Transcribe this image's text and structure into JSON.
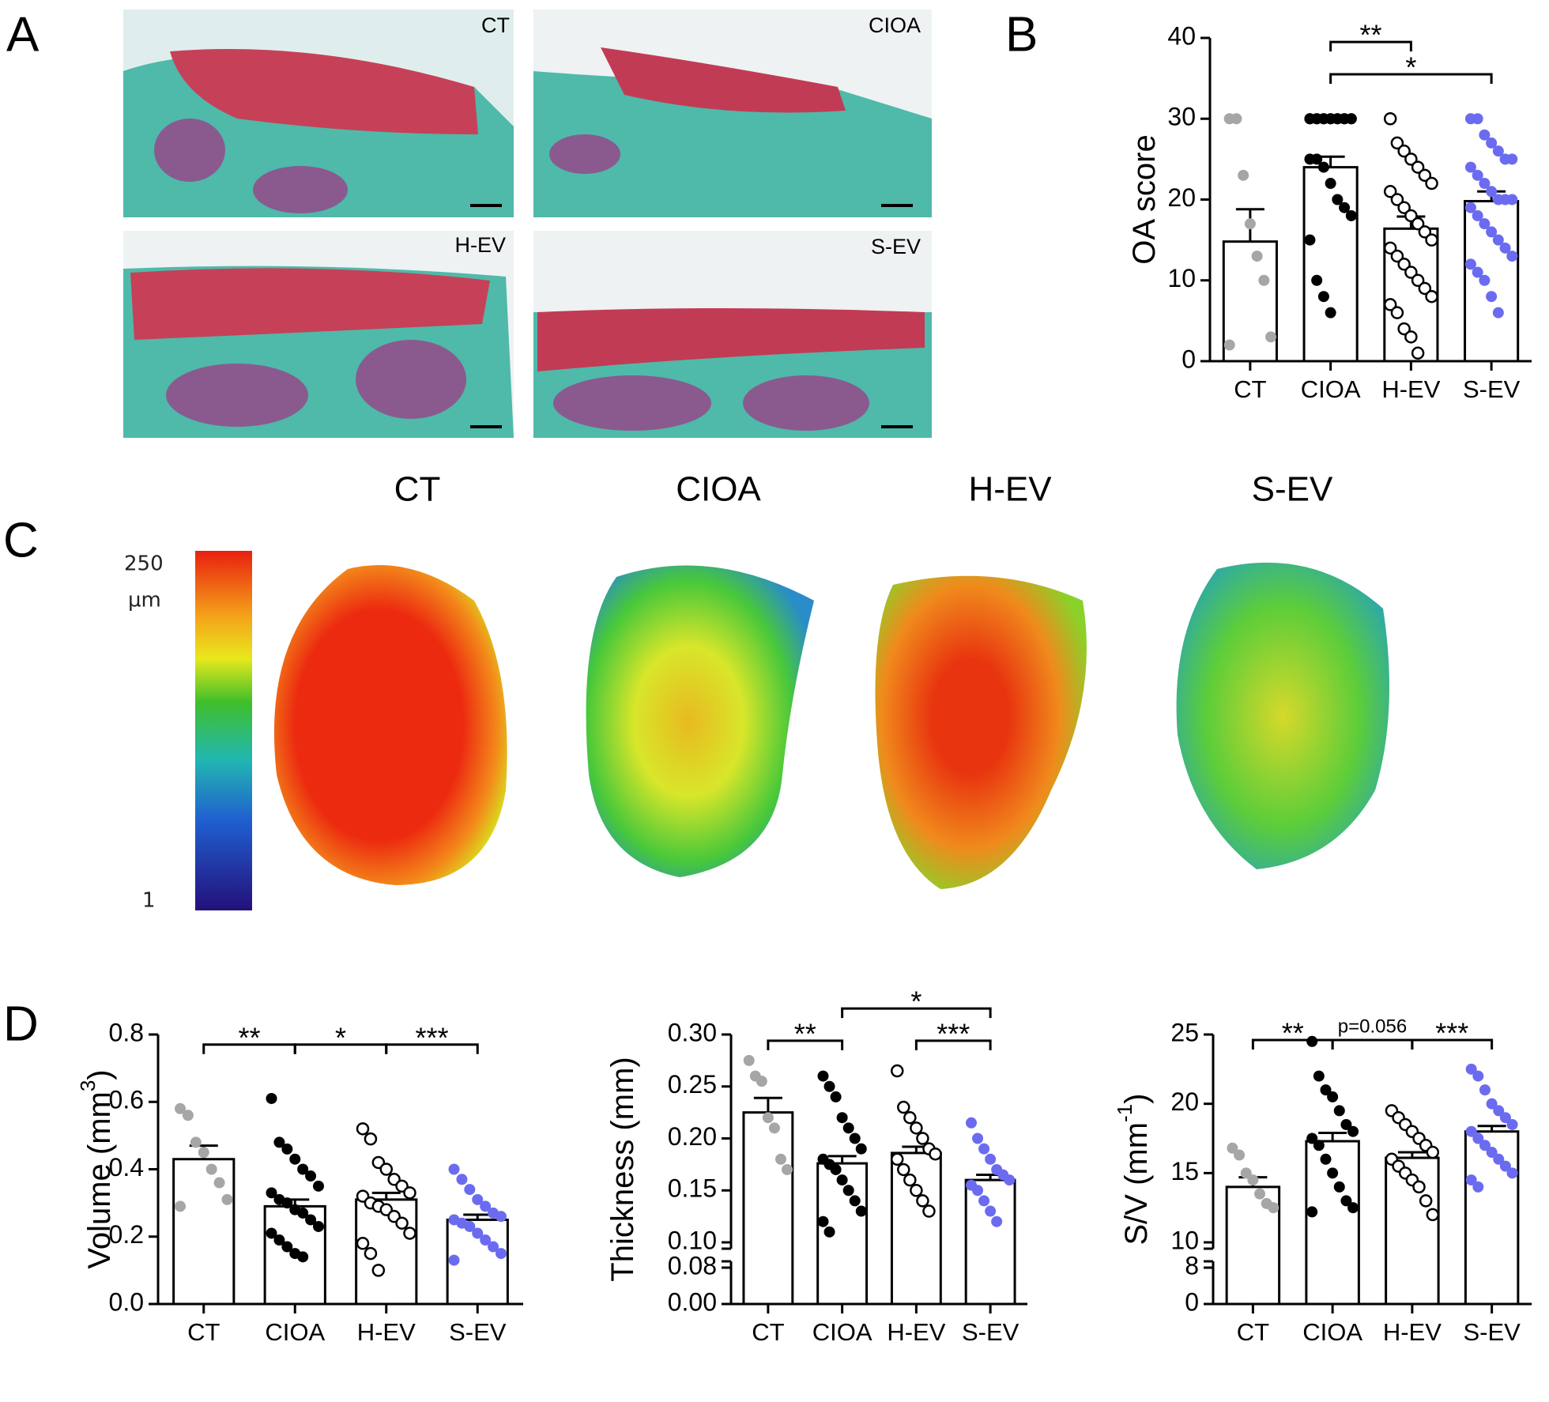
{
  "panel_labels": [
    "A",
    "B",
    "C",
    "D"
  ],
  "histology_labels": [
    "CT",
    "CIOA",
    "H-EV",
    "S-EV"
  ],
  "heatmap": {
    "groups": [
      "CT",
      "CIOA",
      "H-EV",
      "S-EV"
    ],
    "scale_max": "250",
    "scale_unit": "µm",
    "scale_min": "1"
  },
  "chart_data": [
    {
      "type": "bar",
      "ylabel": [
        "OA score"
      ],
      "categories": [
        "CT",
        "CIOA",
        "H-EV",
        "S-EV"
      ],
      "values": [
        14.8,
        24,
        16.4,
        19.8
      ],
      "errors": [
        4,
        1.3,
        1.5,
        1.2
      ],
      "point_colors": [
        "#a6a6a6",
        "#000000",
        "#000000",
        "#6b6bf0"
      ],
      "point_style": [
        "filled",
        "filled",
        "open",
        "filled"
      ],
      "points": [
        [
          30,
          30,
          23,
          17,
          13,
          10,
          3,
          2
        ],
        [
          30,
          30,
          30,
          30,
          30,
          30,
          30,
          30,
          30,
          30,
          30,
          30,
          30,
          30,
          25,
          25,
          24,
          22,
          20,
          19,
          18,
          15,
          10,
          8,
          6
        ],
        [
          30,
          27,
          26,
          25,
          24,
          23,
          22,
          21,
          20,
          19,
          18,
          17,
          16,
          15,
          14,
          13,
          12,
          11,
          10,
          9,
          8,
          7,
          6,
          4,
          3,
          1
        ],
        [
          30,
          30,
          28,
          27,
          26,
          25,
          25,
          24,
          23,
          22,
          21,
          20,
          20,
          20,
          19,
          18,
          17,
          16,
          15,
          14,
          13,
          12,
          11,
          10,
          8,
          6
        ]
      ],
      "ylim": [
        0,
        40
      ],
      "yticks": [
        0,
        10,
        20,
        30,
        40
      ],
      "brackets": [
        {
          "between": [
            "CIOA",
            "H-EV"
          ],
          "y": 39.5,
          "text": "**"
        },
        {
          "between": [
            "CIOA",
            "S-EV"
          ],
          "y": 35.5,
          "text": "*"
        }
      ]
    },
    {
      "type": "bar",
      "ylabel": [
        "Volume (mm",
        "3",
        ")"
      ],
      "categories": [
        "CT",
        "CIOA",
        "H-EV",
        "S-EV"
      ],
      "values": [
        0.43,
        0.29,
        0.31,
        0.25
      ],
      "errors": [
        0.04,
        0.02,
        0.02,
        0.015
      ],
      "point_colors": [
        "#a6a6a6",
        "#000000",
        "#000000",
        "#6b6bf0"
      ],
      "point_style": [
        "filled",
        "filled",
        "open",
        "filled"
      ],
      "points": [
        [
          0.58,
          0.56,
          0.48,
          0.45,
          0.4,
          0.36,
          0.31,
          0.29
        ],
        [
          0.61,
          0.48,
          0.46,
          0.43,
          0.4,
          0.38,
          0.35,
          0.33,
          0.31,
          0.3,
          0.28,
          0.27,
          0.25,
          0.23,
          0.21,
          0.19,
          0.17,
          0.15,
          0.14
        ],
        [
          0.52,
          0.49,
          0.42,
          0.4,
          0.37,
          0.35,
          0.33,
          0.32,
          0.3,
          0.29,
          0.28,
          0.26,
          0.24,
          0.21,
          0.18,
          0.15,
          0.1
        ],
        [
          0.4,
          0.37,
          0.34,
          0.31,
          0.29,
          0.27,
          0.26,
          0.25,
          0.24,
          0.23,
          0.21,
          0.19,
          0.17,
          0.15,
          0.13
        ]
      ],
      "ylim": [
        0,
        0.8
      ],
      "yticks": [
        {
          "value": 0,
          "label": "0.0"
        },
        0.2,
        0.4,
        0.6,
        0.8
      ],
      "brackets": [
        {
          "between": [
            "CT",
            "CIOA"
          ],
          "y": 0.77,
          "text": "**"
        },
        {
          "between": [
            "CIOA",
            "H-EV"
          ],
          "y": 0.77,
          "text": "*"
        },
        {
          "between": [
            "H-EV",
            "S-EV"
          ],
          "y": 0.77,
          "text": "***"
        }
      ]
    },
    {
      "type": "bar",
      "ylabel": [
        "Thickness (mm)"
      ],
      "categories": [
        "CT",
        "CIOA",
        "H-EV",
        "S-EV"
      ],
      "values": [
        0.225,
        0.176,
        0.186,
        0.16
      ],
      "errors": [
        0.014,
        0.007,
        0.006,
        0.005
      ],
      "point_colors": [
        "#a6a6a6",
        "#000000",
        "#000000",
        "#6b6bf0"
      ],
      "point_style": [
        "filled",
        "filled",
        "open",
        "filled"
      ],
      "points": [
        [
          0.275,
          0.26,
          0.255,
          0.22,
          0.21,
          0.18,
          0.17
        ],
        [
          0.26,
          0.25,
          0.24,
          0.22,
          0.21,
          0.2,
          0.19,
          0.18,
          0.175,
          0.17,
          0.16,
          0.15,
          0.14,
          0.13,
          0.12,
          0.11
        ],
        [
          0.265,
          0.23,
          0.22,
          0.21,
          0.2,
          0.19,
          0.185,
          0.18,
          0.17,
          0.16,
          0.15,
          0.14,
          0.13
        ],
        [
          0.215,
          0.2,
          0.19,
          0.18,
          0.17,
          0.165,
          0.16,
          0.155,
          0.15,
          0.14,
          0.13,
          0.12
        ]
      ],
      "ylim": [
        0,
        0.3
      ],
      "axis_break": [
        0.08,
        0.1
      ],
      "yticks": [
        {
          "value": 0,
          "label": "0.00"
        },
        0.08,
        {
          "value": 0.1,
          "label": "0.10"
        },
        0.15,
        {
          "value": 0.2,
          "label": "0.20"
        },
        0.25,
        {
          "value": 0.3,
          "label": "0.30"
        }
      ],
      "brackets": [
        {
          "between": [
            "CT",
            "CIOA"
          ],
          "y": 0.294,
          "text": "**"
        },
        {
          "between": [
            "CIOA",
            "S-EV"
          ],
          "y": 0.325,
          "text": "*"
        },
        {
          "between": [
            "H-EV",
            "S-EV"
          ],
          "y": 0.294,
          "text": "***"
        }
      ]
    },
    {
      "type": "bar",
      "ylabel": [
        "S/V (mm",
        "-1",
        ")"
      ],
      "categories": [
        "CT",
        "CIOA",
        "H-EV",
        "S-EV"
      ],
      "values": [
        14,
        17.3,
        16.1,
        18
      ],
      "errors": [
        0.7,
        0.6,
        0.4,
        0.4
      ],
      "point_colors": [
        "#a6a6a6",
        "#000000",
        "#000000",
        "#6b6bf0"
      ],
      "point_style": [
        "filled",
        "filled",
        "open",
        "filled"
      ],
      "points": [
        [
          16.8,
          16.3,
          15,
          14.5,
          13.5,
          12.8,
          12.5
        ],
        [
          24.5,
          22,
          21,
          20.5,
          19.5,
          18.5,
          18,
          17.5,
          17,
          16,
          15,
          14,
          13,
          12.5,
          12.2
        ],
        [
          19.5,
          19,
          18.5,
          18,
          17.5,
          17,
          16.5,
          16,
          15.5,
          15,
          14.5,
          14,
          13,
          12
        ],
        [
          22.5,
          22,
          21,
          20,
          19.5,
          19,
          18.5,
          18,
          17.5,
          17,
          16.5,
          16,
          15.5,
          15,
          14.5,
          14
        ]
      ],
      "ylim": [
        0,
        25
      ],
      "axis_break": [
        8,
        10
      ],
      "yticks": [
        0,
        8,
        10,
        15,
        20,
        25
      ],
      "brackets": [
        {
          "between": [
            "CT",
            "CIOA"
          ],
          "y": 24.6,
          "text": "**"
        },
        {
          "between": [
            "CIOA",
            "H-EV"
          ],
          "y": 24.6,
          "text": "p=0.056"
        },
        {
          "between": [
            "H-EV",
            "S-EV"
          ],
          "y": 24.6,
          "text": "***"
        }
      ]
    }
  ]
}
